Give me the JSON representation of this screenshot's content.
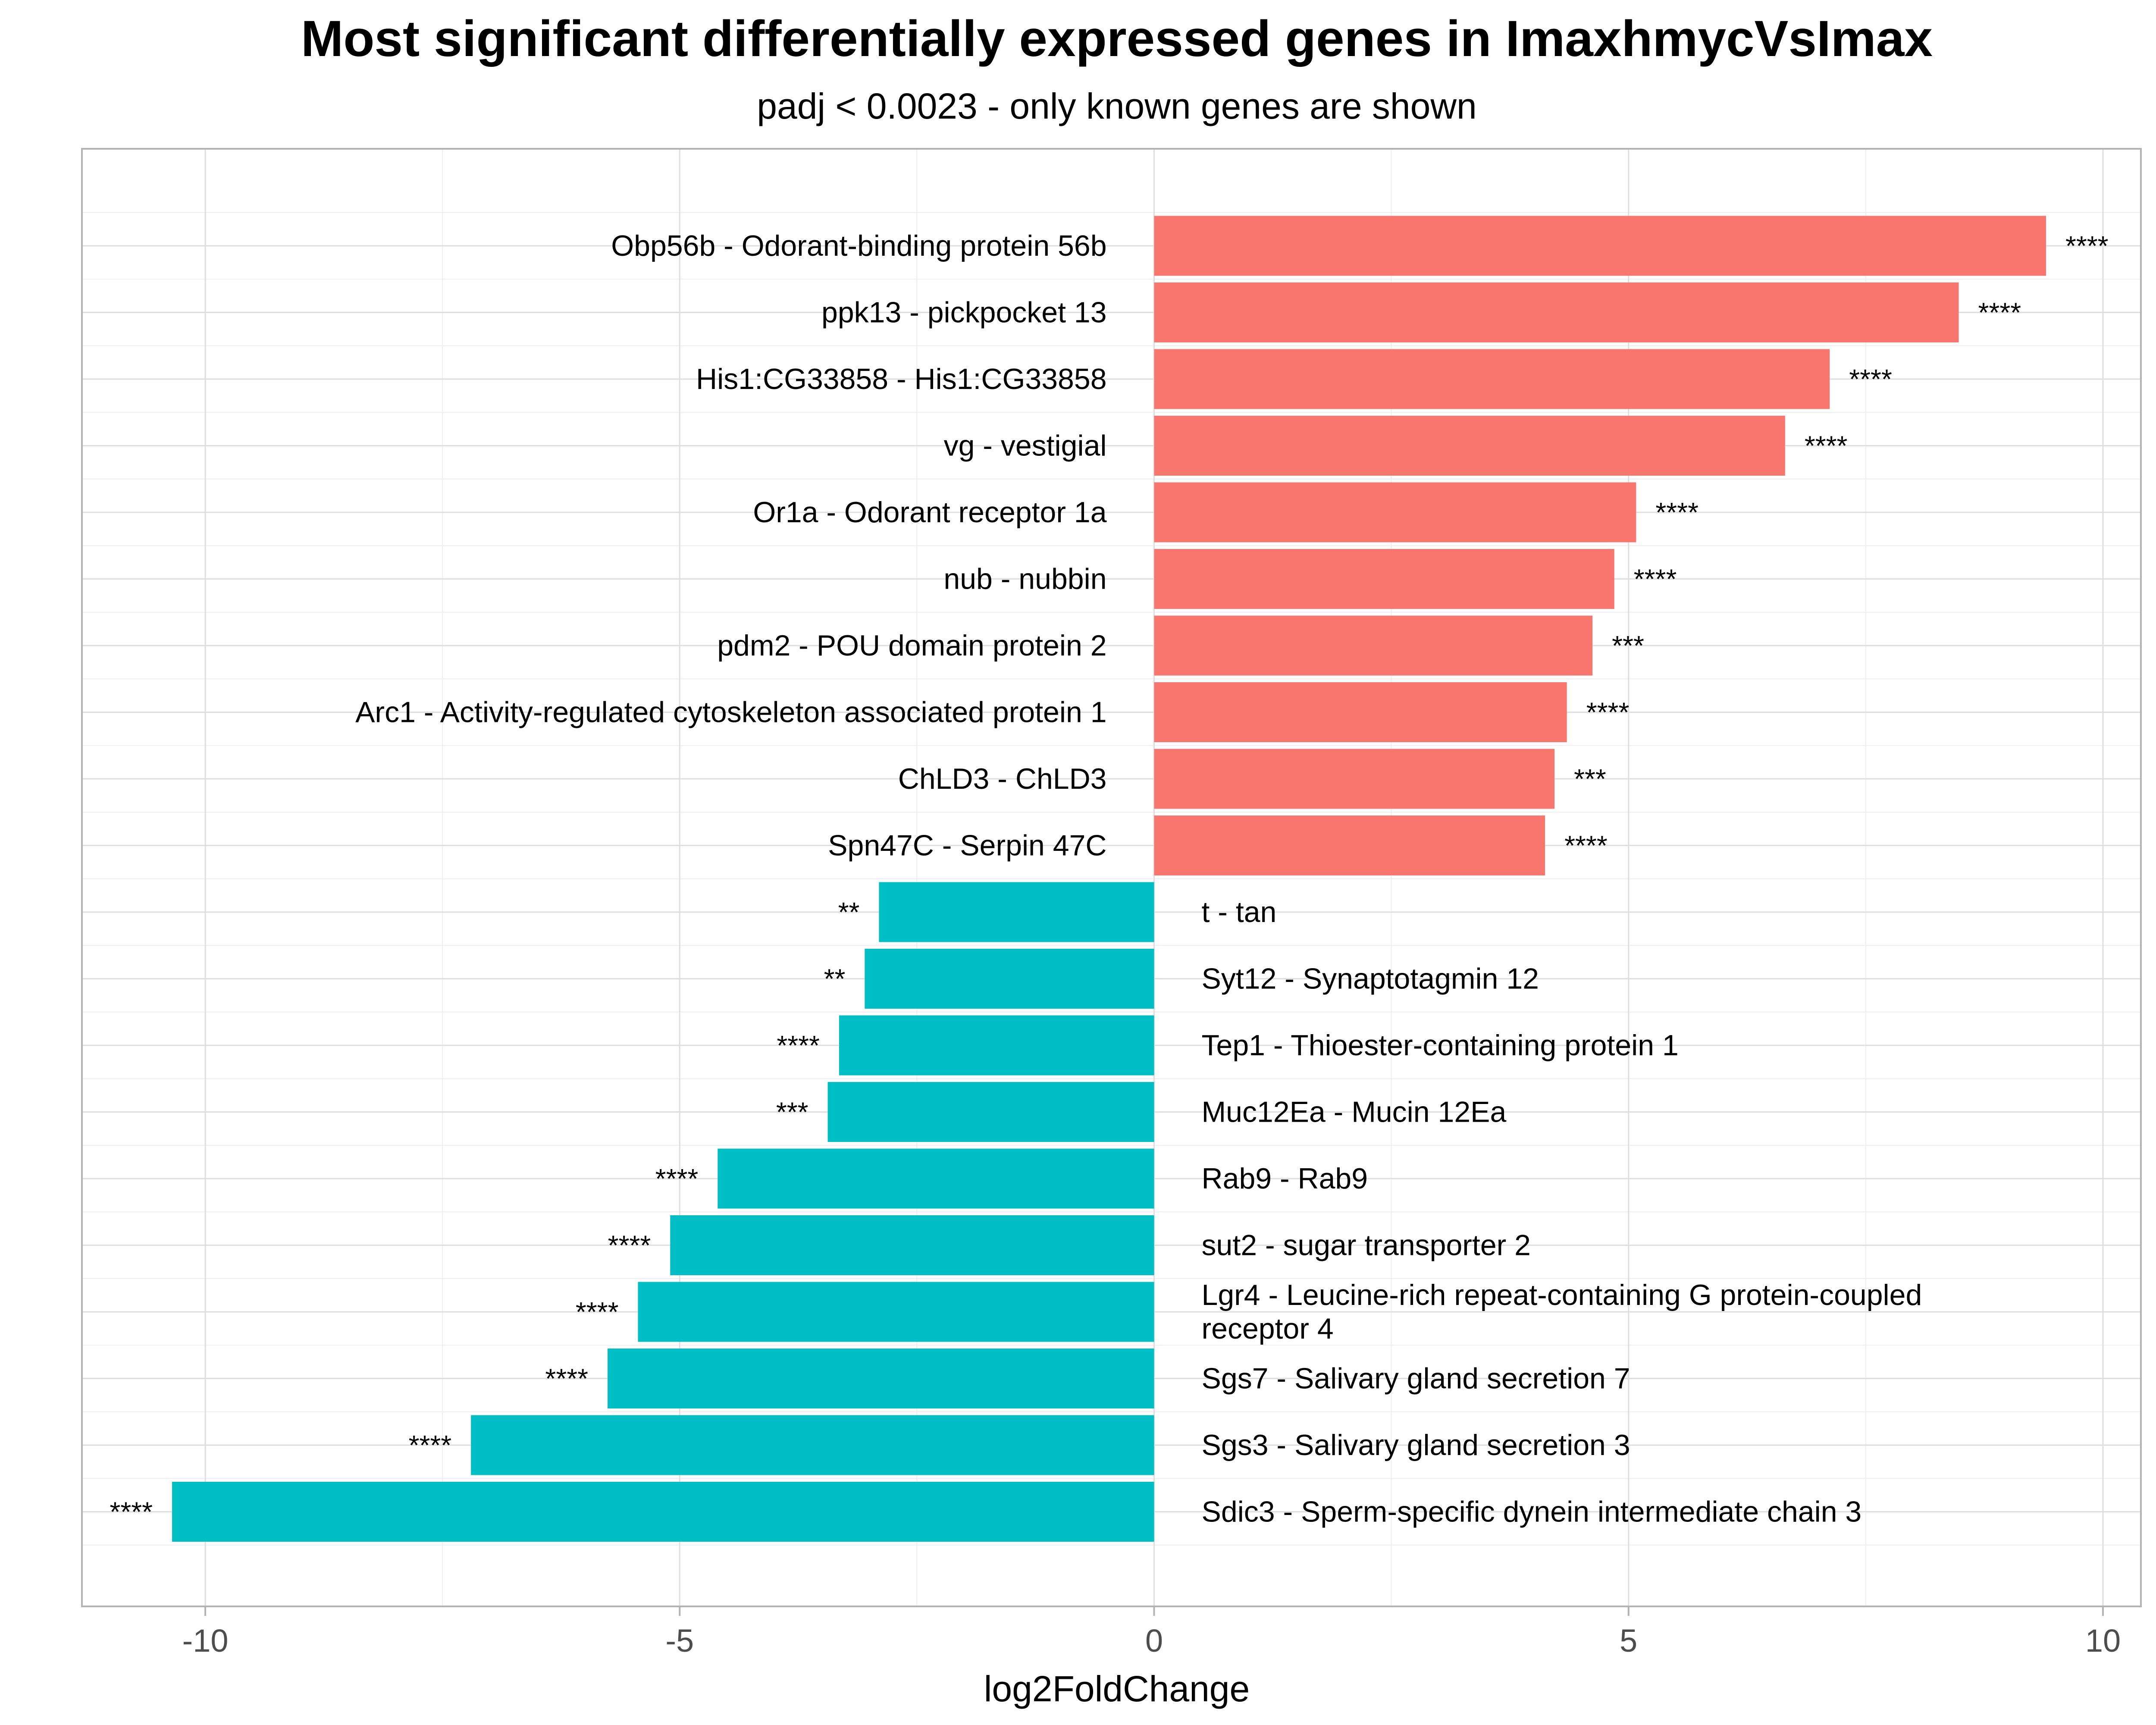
{
  "chart_data": {
    "type": "bar",
    "orientation": "horizontal",
    "title": "Most significant differentially expressed genes in ImaxhmycVsImax",
    "subtitle": "padj < 0.0023 - only known genes are shown",
    "xlabel": "log2FoldChange",
    "ylabel": "",
    "xlim": [
      -11.3,
      10.4
    ],
    "xticks": [
      -10,
      -5,
      0,
      5,
      10
    ],
    "xtick_labels": [
      "-10",
      "-5",
      "0",
      "5",
      "10"
    ],
    "grid": true,
    "colors": {
      "up": "#F8766D",
      "down": "#00BFC4"
    },
    "bars": [
      {
        "label": "Obp56b - Odorant-binding protein 56b",
        "value": 9.4,
        "significance": "****"
      },
      {
        "label": "ppk13 - pickpocket 13",
        "value": 8.48,
        "significance": "****"
      },
      {
        "label": "His1:CG33858 - His1:CG33858",
        "value": 7.12,
        "significance": "****"
      },
      {
        "label": "vg - vestigial",
        "value": 6.65,
        "significance": "****"
      },
      {
        "label": "Or1a - Odorant receptor 1a",
        "value": 5.08,
        "significance": "****"
      },
      {
        "label": "nub - nubbin",
        "value": 4.85,
        "significance": "****"
      },
      {
        "label": "pdm2 - POU domain protein 2",
        "value": 4.62,
        "significance": "***"
      },
      {
        "label": "Arc1 - Activity-regulated cytoskeleton associated protein 1",
        "value": 4.35,
        "significance": "****"
      },
      {
        "label": "ChLD3 - ChLD3",
        "value": 4.22,
        "significance": "***"
      },
      {
        "label": "Spn47C - Serpin 47C",
        "value": 4.12,
        "significance": "****"
      },
      {
        "label": "t - tan",
        "value": -2.9,
        "significance": "**"
      },
      {
        "label": "Syt12 - Synaptotagmin 12",
        "value": -3.05,
        "significance": "**"
      },
      {
        "label": "Tep1 - Thioester-containing protein 1",
        "value": -3.32,
        "significance": "****"
      },
      {
        "label": "Muc12Ea - Mucin 12Ea",
        "value": -3.44,
        "significance": "***"
      },
      {
        "label": "Rab9 - Rab9",
        "value": -4.6,
        "significance": "****"
      },
      {
        "label": "sut2 - sugar transporter 2",
        "value": -5.1,
        "significance": "****"
      },
      {
        "label": "Lgr4 - Leucine-rich repeat-containing G protein-coupled receptor 4",
        "label_lines": [
          "Lgr4 - Leucine-rich repeat-containing G protein-coupled",
          "receptor 4"
        ],
        "value": -5.44,
        "significance": "****"
      },
      {
        "label": "Sgs7 - Salivary gland secretion 7",
        "value": -5.76,
        "significance": "****"
      },
      {
        "label": "Sgs3 - Salivary gland secretion 3",
        "value": -7.2,
        "significance": "****"
      },
      {
        "label": "Sdic3 - Sperm-specific dynein intermediate chain 3",
        "value": -10.35,
        "significance": "****"
      }
    ]
  }
}
